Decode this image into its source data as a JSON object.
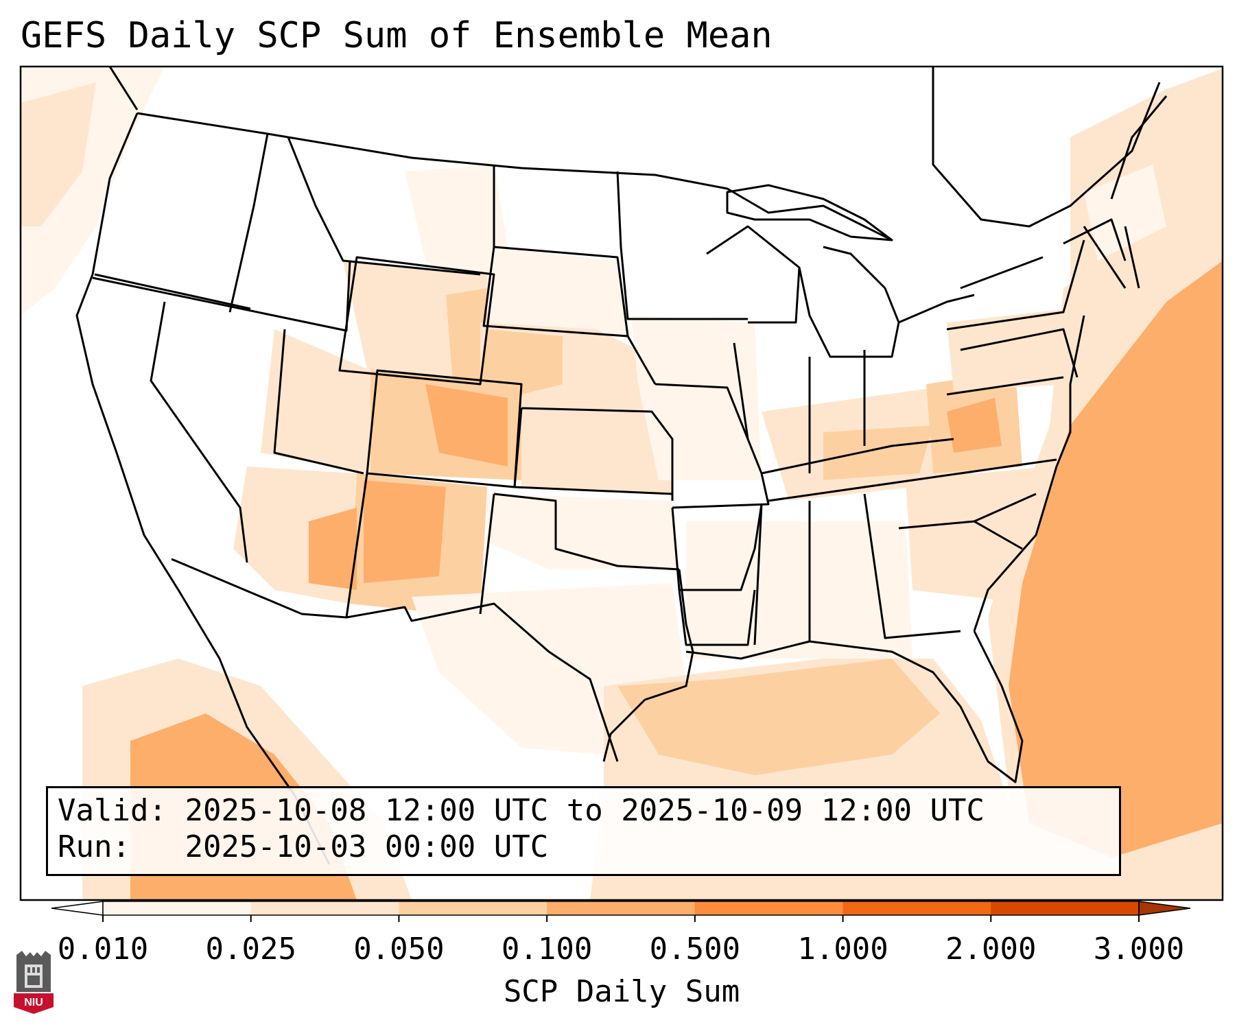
{
  "title": "GEFS Daily SCP Sum of Ensemble Mean",
  "info": {
    "valid_label": "Valid:",
    "valid_value": "2025-10-08 12:00 UTC to 2025-10-09 12:00 UTC",
    "run_label": "Run:",
    "run_value": "2025-10-03 00:00 UTC"
  },
  "colorbar": {
    "label": "SCP Daily Sum",
    "ticks": [
      "0.010",
      "0.025",
      "0.050",
      "0.100",
      "0.500",
      "1.000",
      "2.000",
      "3.000"
    ],
    "colors": [
      "#fff5eb",
      "#fee6ce",
      "#fdd0a2",
      "#fdae6b",
      "#fd8d3c",
      "#f16913",
      "#d94801"
    ],
    "under_color": "#ffffff",
    "over_color": "#a63603"
  },
  "map": {
    "region": "CONUS",
    "field_colors": {
      "low": "#fff5eb",
      "mid": "#fee6ce",
      "high": "#fdd0a2",
      "peak": "#fdae6b"
    }
  },
  "logo": {
    "text": "NIU",
    "primary_color": "#c8102e"
  }
}
